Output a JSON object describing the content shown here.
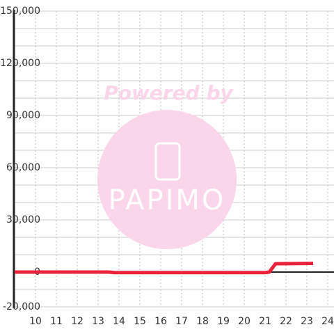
{
  "chart_data": {
    "type": "line",
    "watermark": [
      "Powered by",
      "PAPIMO"
    ],
    "x": [
      9,
      13.5,
      13.8,
      21,
      21.2,
      21.5,
      23.3
    ],
    "series": [
      {
        "color": "#e8233a",
        "values": [
          0,
          0,
          -300,
          -300,
          0,
          4800,
          5000
        ]
      }
    ],
    "xlim": [
      9,
      24.3
    ],
    "xticks": [
      10,
      11,
      12,
      13,
      14,
      15,
      16,
      17,
      18,
      19,
      20,
      21,
      22,
      23,
      24
    ],
    "ylim": [
      -20000,
      150000
    ],
    "yticks": [
      {
        "value": -20000,
        "label": "-20,000"
      },
      0,
      {
        "value": 30000,
        "label": "30,000"
      },
      {
        "value": 60000,
        "label": "60,000"
      },
      {
        "value": 90000,
        "label": "90,000"
      },
      {
        "value": 120000,
        "label": "120,000"
      },
      {
        "value": 150000,
        "label": "150,000"
      }
    ],
    "y_minor_ticks": [
      -10000,
      10000,
      20000,
      40000,
      50000,
      70000,
      80000,
      100000,
      110000,
      130000,
      140000
    ],
    "grid": true
  }
}
